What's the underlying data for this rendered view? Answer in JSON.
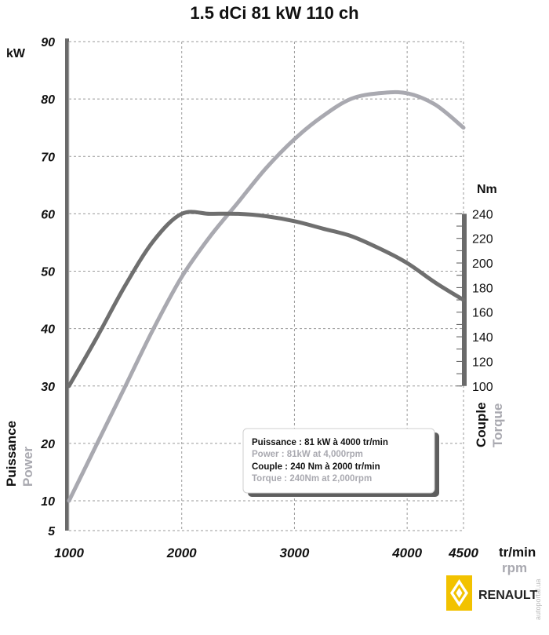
{
  "chart_data": {
    "type": "line",
    "title": "1.5 dCi 81 kW 110 ch",
    "x_unit_fr": "tr/min",
    "x_unit_en": "rpm",
    "x_ticks": [
      "1000",
      "2000",
      "3000",
      "4000",
      "4500"
    ],
    "x_range": [
      1000,
      4500
    ],
    "y_left": {
      "unit": "kW",
      "label_fr": "Puissance",
      "label_en": "Power",
      "ticks": [
        "5",
        "10",
        "20",
        "30",
        "40",
        "50",
        "60",
        "70",
        "80",
        "90"
      ],
      "range": [
        5,
        90
      ]
    },
    "y_right": {
      "unit": "Nm",
      "label_fr": "Couple",
      "label_en": "Torque",
      "ticks": [
        "100",
        "120",
        "140",
        "160",
        "180",
        "200",
        "220",
        "240"
      ],
      "range": [
        100,
        240
      ]
    },
    "grid": true,
    "series": [
      {
        "name": "Power",
        "axis": "left",
        "color": "#a9a9b0",
        "x": [
          1000,
          1250,
          1500,
          1750,
          2000,
          2250,
          2500,
          2750,
          3000,
          3250,
          3500,
          3750,
          4000,
          4250,
          4500
        ],
        "y": [
          10,
          20,
          30,
          40,
          49,
          56,
          62,
          68,
          73,
          77,
          80,
          81,
          81,
          79,
          75
        ]
      },
      {
        "name": "Torque",
        "axis": "right",
        "color": "#6f6f6f",
        "x": [
          1000,
          1250,
          1500,
          1750,
          2000,
          2250,
          2500,
          2750,
          3000,
          3250,
          3500,
          3750,
          4000,
          4250,
          4500
        ],
        "y": [
          100,
          140,
          182,
          218,
          240,
          240,
          240,
          238,
          234,
          228,
          222,
          212,
          200,
          184,
          170
        ]
      }
    ]
  },
  "legend": {
    "line1": "Puissance : 81 kW à 4000 tr/min",
    "line2": "Power : 81kW at 4,000rpm",
    "line3": "Couple : 240 Nm à 2000 tr/min",
    "line4": "Torque : 240Nm at 2,000rpm"
  },
  "brand": "RENAULT",
  "watermark": "autoportal.ua",
  "colors": {
    "power": "#a9a9b0",
    "torque": "#6f6f6f",
    "grid": "#9a9a9a",
    "logo": "#f2c200"
  }
}
